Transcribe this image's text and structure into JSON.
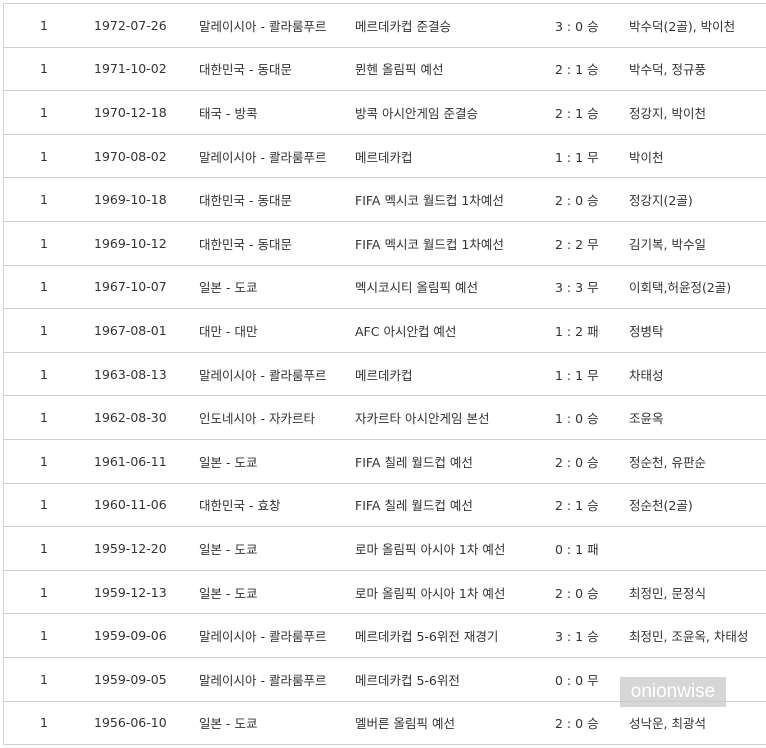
{
  "matches": [
    {
      "n": "1",
      "date": "1972-07-26",
      "venue": "말레이시아 - 콸라룸푸르",
      "competition": "메르데카컵 준결승",
      "score": "3 : 0",
      "result": "승",
      "scorers": "박수덕(2골), 박이천"
    },
    {
      "n": "1",
      "date": "1971-10-02",
      "venue": "대한민국 - 동대문",
      "competition": "뮌헨 올림픽 예선",
      "score": "2 : 1",
      "result": "승",
      "scorers": "박수덕, 정규풍"
    },
    {
      "n": "1",
      "date": "1970-12-18",
      "venue": "태국 - 방콕",
      "competition": "방콕 아시안게임 준결승",
      "score": "2 : 1",
      "result": "승",
      "scorers": "정강지, 박이천"
    },
    {
      "n": "1",
      "date": "1970-08-02",
      "venue": "말레이시아 - 콸라룸푸르",
      "competition": "메르데카컵",
      "score": "1 : 1",
      "result": "무",
      "scorers": "박이천"
    },
    {
      "n": "1",
      "date": "1969-10-18",
      "venue": "대한민국 - 동대문",
      "competition": "FIFA 멕시코 월드컵 1차예선",
      "score": "2 : 0",
      "result": "승",
      "scorers": "정강지(2골)"
    },
    {
      "n": "1",
      "date": "1969-10-12",
      "venue": "대한민국 - 동대문",
      "competition": "FIFA 멕시코 월드컵 1차예선",
      "score": "2 : 2",
      "result": "무",
      "scorers": "김기복, 박수일"
    },
    {
      "n": "1",
      "date": "1967-10-07",
      "venue": "일본 - 도쿄",
      "competition": "멕시코시티 올림픽 예선",
      "score": "3 : 3",
      "result": "무",
      "scorers": "이회택,허윤정(2골)"
    },
    {
      "n": "1",
      "date": "1967-08-01",
      "venue": "대만 - 대만",
      "competition": "AFC 아시안컵 예선",
      "score": "1 : 2",
      "result": "패",
      "scorers": "정병탁"
    },
    {
      "n": "1",
      "date": "1963-08-13",
      "venue": "말레이시아 - 콸라룸푸르",
      "competition": "메르데카컵",
      "score": "1 : 1",
      "result": "무",
      "scorers": "차태성"
    },
    {
      "n": "1",
      "date": "1962-08-30",
      "venue": "인도네시아 - 자카르타",
      "competition": "자카르타 아시안게임 본선",
      "score": "1 : 0",
      "result": "승",
      "scorers": "조윤옥"
    },
    {
      "n": "1",
      "date": "1961-06-11",
      "venue": "일본 - 도쿄",
      "competition": "FIFA 칠레 월드컵 예선",
      "score": "2 : 0",
      "result": "승",
      "scorers": "정순천, 유판순"
    },
    {
      "n": "1",
      "date": "1960-11-06",
      "venue": "대한민국 - 효창",
      "competition": "FIFA 칠레 월드컵 예선",
      "score": "2 : 1",
      "result": "승",
      "scorers": "정순천(2골)"
    },
    {
      "n": "1",
      "date": "1959-12-20",
      "venue": "일본 - 도쿄",
      "competition": "로마 올림픽 아시아 1차 예선",
      "score": "0 : 1",
      "result": "패",
      "scorers": ""
    },
    {
      "n": "1",
      "date": "1959-12-13",
      "venue": "일본 - 도쿄",
      "competition": "로마 올림픽 아시아 1차 예선",
      "score": "2 : 0",
      "result": "승",
      "scorers": "최정민, 문정식"
    },
    {
      "n": "1",
      "date": "1959-09-06",
      "venue": "말레이시아 - 콸라룸푸르",
      "competition": "메르데카컵 5-6위전 재경기",
      "score": "3 : 1",
      "result": "승",
      "scorers": "최정민, 조윤옥, 차태성"
    },
    {
      "n": "1",
      "date": "1959-09-05",
      "venue": "말레이시아 - 콸라룸푸르",
      "competition": "메르데카컵 5-6위전",
      "score": "0 : 0",
      "result": "무",
      "scorers": ""
    },
    {
      "n": "1",
      "date": "1956-06-10",
      "venue": "일본 - 도쿄",
      "competition": "멜버른 올림픽 예선",
      "score": "2 : 0",
      "result": "승",
      "scorers": "성낙운, 최광석"
    }
  ],
  "watermark": "onionwise"
}
